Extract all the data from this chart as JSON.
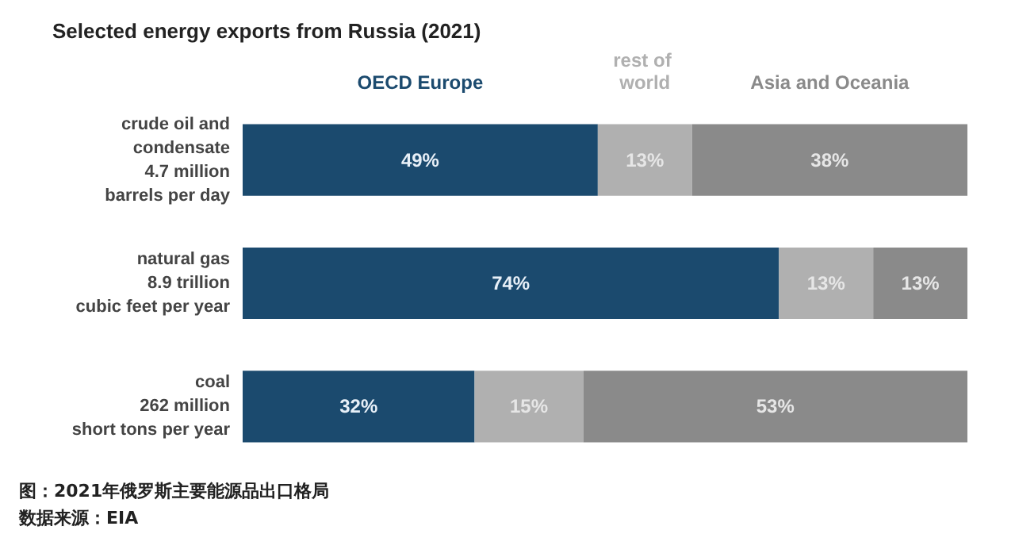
{
  "chart_data": {
    "type": "bar",
    "orientation": "horizontal",
    "stacked": true,
    "title": "Selected energy exports from Russia (2021)",
    "categories": [
      "crude oil and\ncondensate\n4.7 million\nbarrels per day",
      "natural gas\n8.9 trillion\ncubic feet per year",
      "coal\n262 million\nshort tons per year"
    ],
    "xlim": [
      0,
      100
    ],
    "tick_labels": "y",
    "legend": "top",
    "series": [
      {
        "name": "OECD Europe",
        "color": "#1b4a6e",
        "values": [
          49,
          74,
          32
        ],
        "value_labels": [
          "49%",
          "74%",
          "32%"
        ]
      },
      {
        "name": "rest of world",
        "color": "#b0b0b0",
        "values": [
          13,
          13,
          15
        ],
        "value_labels": [
          "13%",
          "13%",
          "15%"
        ]
      },
      {
        "name": "Asia and Oceania",
        "color": "#8a8a8a",
        "values": [
          38,
          13,
          53
        ],
        "value_labels": [
          "38%",
          "13%",
          "53%"
        ]
      }
    ],
    "annotations": [
      "图：2021年俄罗斯主要能源品出口格局",
      "数据来源：EIA"
    ]
  }
}
